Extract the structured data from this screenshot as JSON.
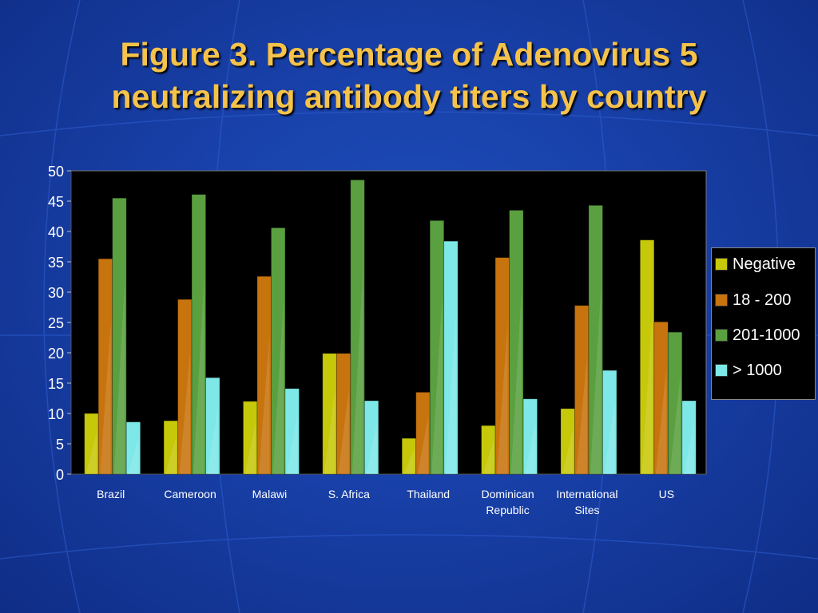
{
  "title_lines": [
    "Figure 3. Percentage of Adenovirus 5",
    "neutralizing antibody titers by country"
  ],
  "colors": {
    "background": "#1840a8",
    "title": "#f5c24a",
    "plot_background": "#000000"
  },
  "chart_data": {
    "type": "bar",
    "title": "Figure 3. Percentage of Adenovirus 5 neutralizing antibody titers by country",
    "categories": [
      "Brazil",
      "Cameroon",
      "Malawi",
      "S. Africa",
      "Thailand",
      "Dominican Republic",
      "International Sites",
      "US"
    ],
    "category_lines": [
      [
        "Brazil"
      ],
      [
        "Cameroon"
      ],
      [
        "Malawi"
      ],
      [
        "S. Africa"
      ],
      [
        "Thailand"
      ],
      [
        "Dominican",
        "Republic"
      ],
      [
        "International",
        "Sites"
      ],
      [
        "US"
      ]
    ],
    "series": [
      {
        "name": "Negative",
        "color": "#c6c80a",
        "values": [
          10,
          8.8,
          12,
          19.9,
          5.9,
          8,
          10.8,
          38.6
        ]
      },
      {
        "name": "18 - 200",
        "color": "#c8740e",
        "values": [
          35.5,
          28.8,
          32.6,
          19.9,
          13.5,
          35.7,
          27.8,
          25.1
        ]
      },
      {
        "name": "201-1000",
        "color": "#5aa040",
        "values": [
          45.5,
          46.1,
          40.6,
          48.5,
          41.8,
          43.5,
          44.3,
          23.4
        ]
      },
      {
        "name": "> 1000",
        "color": "#7ee8e8",
        "values": [
          8.6,
          15.9,
          14.1,
          12.1,
          38.4,
          12.4,
          17.1,
          12.1
        ]
      }
    ],
    "ylim": [
      0,
      50
    ],
    "yticks": [
      "0",
      "5",
      "10",
      "15",
      "20",
      "25",
      "30",
      "35",
      "40",
      "45",
      "50"
    ],
    "xlabel": "",
    "ylabel": "",
    "grid": false,
    "legend_position": "right"
  }
}
